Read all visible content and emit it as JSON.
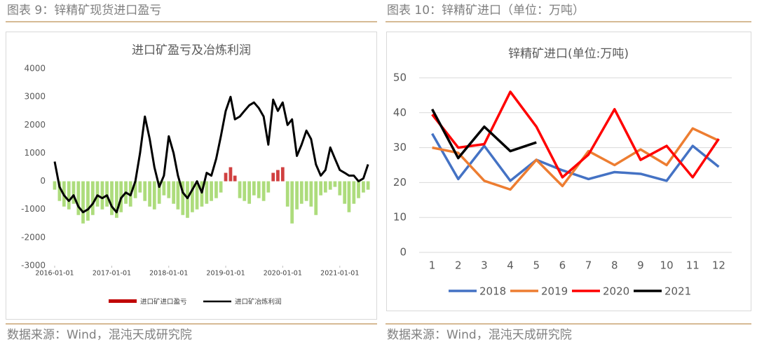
{
  "chart_data": [
    {
      "type": "combo",
      "caption": "图表 9：锌精矿现货进口盈亏",
      "source": "数据来源：Wind，混沌天成研究院",
      "title": "进口矿盈亏及冶炼利润",
      "x": [
        "2016-01-01",
        "2016-02-01",
        "2016-03-01",
        "2016-04-01",
        "2016-05-01",
        "2016-06-01",
        "2016-07-01",
        "2016-08-01",
        "2016-09-01",
        "2016-10-01",
        "2016-11-01",
        "2016-12-01",
        "2017-01-01",
        "2017-02-01",
        "2017-03-01",
        "2017-04-01",
        "2017-05-01",
        "2017-06-01",
        "2017-07-01",
        "2017-08-01",
        "2017-09-01",
        "2017-10-01",
        "2017-11-01",
        "2017-12-01",
        "2018-01-01",
        "2018-02-01",
        "2018-03-01",
        "2018-04-01",
        "2018-05-01",
        "2018-06-01",
        "2018-07-01",
        "2018-08-01",
        "2018-09-01",
        "2018-10-01",
        "2018-11-01",
        "2018-12-01",
        "2019-01-01",
        "2019-02-01",
        "2019-03-01",
        "2019-04-01",
        "2019-05-01",
        "2019-06-01",
        "2019-07-01",
        "2019-08-01",
        "2019-09-01",
        "2019-10-01",
        "2019-11-01",
        "2019-12-01",
        "2020-01-01",
        "2020-02-01",
        "2020-03-01",
        "2020-04-01",
        "2020-05-01",
        "2020-06-01",
        "2020-07-01",
        "2020-08-01",
        "2020-09-01",
        "2020-10-01",
        "2020-11-01",
        "2020-12-01",
        "2021-01-01",
        "2021-02-01",
        "2021-03-01",
        "2021-04-01",
        "2021-05-01",
        "2021-06-01",
        "2021-07-01"
      ],
      "series": [
        {
          "name": "进口矿进口盈亏",
          "kind": "bar",
          "color": "#c00000",
          "negative_color": "#92d050",
          "values": [
            -300,
            -700,
            -900,
            -1000,
            -800,
            -1200,
            -1500,
            -1400,
            -1200,
            -900,
            -1000,
            -900,
            -1200,
            -1300,
            -1100,
            -800,
            -900,
            -600,
            -400,
            -700,
            -900,
            -1000,
            -800,
            -500,
            -600,
            -800,
            -1000,
            -1200,
            -1300,
            -1100,
            -1000,
            -900,
            -800,
            -700,
            -600,
            -400,
            300,
            500,
            200,
            -600,
            -700,
            -800,
            -500,
            -600,
            -700,
            -400,
            300,
            400,
            500,
            -900,
            -1500,
            -1000,
            -800,
            -700,
            -900,
            -1200,
            -500,
            -400,
            -300,
            -200,
            -500,
            -800,
            -1100,
            -800,
            -600,
            -400,
            -300
          ]
        },
        {
          "name": "进口矿冶炼利润",
          "kind": "line",
          "color": "#000000",
          "values": [
            700,
            -200,
            -500,
            -700,
            -500,
            -900,
            -1100,
            -1000,
            -800,
            -500,
            -600,
            -500,
            -900,
            -1100,
            -600,
            -400,
            -500,
            0,
            1000,
            2300,
            1500,
            500,
            -200,
            200,
            1600,
            1000,
            200,
            -400,
            -600,
            -300,
            0,
            -400,
            300,
            200,
            800,
            1600,
            2500,
            3000,
            2200,
            2300,
            2500,
            2700,
            2800,
            2600,
            2300,
            1300,
            2900,
            2500,
            2800,
            2000,
            2200,
            900,
            1300,
            1800,
            1500,
            600,
            200,
            400,
            1200,
            800,
            400,
            300,
            200,
            200,
            0,
            100,
            600
          ]
        }
      ],
      "xlim": [
        "2016-01-01",
        "2021-08-01"
      ],
      "xticks": [
        "2016-01-01",
        "2017-01-01",
        "2018-01-01",
        "2019-01-01",
        "2020-01-01",
        "2021-01-01"
      ],
      "ylim": [
        -3000,
        4000
      ],
      "yticks": [
        -3000,
        -2000,
        -1000,
        0,
        1000,
        2000,
        3000,
        4000
      ],
      "grid": false,
      "legend": "bottom"
    },
    {
      "type": "line",
      "caption": "图表 10：锌精矿进口（单位：万吨）",
      "source": "数据来源：Wind，混沌天成研究院",
      "title": "锌精矿进口(单位:万吨)",
      "categories": [
        "1",
        "2",
        "3",
        "4",
        "5",
        "6",
        "7",
        "8",
        "9",
        "10",
        "11",
        "12"
      ],
      "series": [
        {
          "name": "2018",
          "color": "#4472c4",
          "values": [
            34,
            21,
            30.5,
            20.5,
            26.5,
            23.5,
            21,
            23,
            22.5,
            20.5,
            30.5,
            24.5
          ]
        },
        {
          "name": "2019",
          "color": "#ed7d31",
          "values": [
            30,
            28.5,
            20.5,
            18,
            26.5,
            19,
            29,
            25,
            29.5,
            25,
            35.5,
            32
          ]
        },
        {
          "name": "2020",
          "color": "#ff0000",
          "values": [
            39.5,
            30,
            31,
            46,
            36,
            21.5,
            28,
            41,
            26.5,
            30.5,
            21.5,
            32.5
          ]
        },
        {
          "name": "2021",
          "color": "#000000",
          "values": [
            41,
            27,
            36,
            29,
            31.5,
            null,
            null,
            null,
            null,
            null,
            null,
            null
          ]
        }
      ],
      "ylim": [
        0,
        50
      ],
      "yticks": [
        0,
        10,
        20,
        30,
        40,
        50
      ],
      "grid": true,
      "legend": "bottom"
    }
  ]
}
